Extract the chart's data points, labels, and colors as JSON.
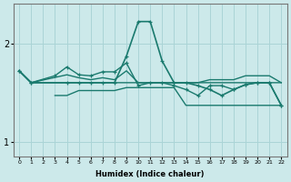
{
  "xlabel": "Humidex (Indice chaleur)",
  "xlim": [
    -0.5,
    22.5
  ],
  "ylim": [
    0.85,
    2.4
  ],
  "xticks": [
    0,
    1,
    2,
    3,
    4,
    5,
    6,
    7,
    8,
    9,
    10,
    11,
    12,
    13,
    14,
    15,
    16,
    17,
    18,
    19,
    20,
    21,
    22
  ],
  "yticks": [
    1,
    2
  ],
  "bg_color": "#cce9ea",
  "grid_color": "#aad4d6",
  "line_color": "#1a7a6e",
  "series": [
    {
      "x": [
        0,
        1,
        2,
        3,
        4,
        5,
        6,
        7,
        8,
        9,
        10,
        11,
        12,
        13,
        14,
        15,
        16,
        17,
        18,
        19,
        20,
        21,
        22
      ],
      "y": [
        1.72,
        1.6,
        1.6,
        1.6,
        1.6,
        1.6,
        1.6,
        1.6,
        1.6,
        1.6,
        1.6,
        1.6,
        1.6,
        1.6,
        1.6,
        1.6,
        1.6,
        1.6,
        1.6,
        1.6,
        1.6,
        1.6,
        1.6
      ],
      "marker": null,
      "lw": 1.0
    },
    {
      "x": [
        3,
        4,
        5,
        6,
        7,
        8,
        9,
        10,
        11,
        12,
        13,
        14,
        15,
        16,
        17,
        18,
        19,
        20,
        21,
        22
      ],
      "y": [
        1.47,
        1.47,
        1.52,
        1.52,
        1.52,
        1.52,
        1.55,
        1.55,
        1.55,
        1.55,
        1.55,
        1.37,
        1.37,
        1.37,
        1.37,
        1.37,
        1.37,
        1.37,
        1.37,
        1.37
      ],
      "marker": null,
      "lw": 1.0
    },
    {
      "x": [
        0,
        1,
        4,
        5,
        6,
        7,
        8,
        9,
        10,
        11,
        12,
        13,
        14,
        15,
        16,
        17,
        18,
        19,
        20,
        21,
        22
      ],
      "y": [
        1.72,
        1.6,
        1.68,
        1.65,
        1.63,
        1.65,
        1.63,
        1.72,
        1.6,
        1.6,
        1.6,
        1.6,
        1.6,
        1.6,
        1.63,
        1.63,
        1.63,
        1.67,
        1.67,
        1.67,
        1.6
      ],
      "marker": null,
      "lw": 1.0
    },
    {
      "x": [
        0,
        1,
        3,
        4,
        5,
        6,
        7,
        8,
        9,
        10,
        11,
        12,
        13,
        14,
        15,
        16,
        17,
        18,
        19,
        20,
        21,
        22
      ],
      "y": [
        1.72,
        1.6,
        1.67,
        1.76,
        1.68,
        1.67,
        1.71,
        1.71,
        1.8,
        1.57,
        1.6,
        1.6,
        1.57,
        1.53,
        1.47,
        1.57,
        1.57,
        1.53,
        1.58,
        1.6,
        1.6,
        1.37
      ],
      "marker": "+",
      "lw": 1.0
    },
    {
      "x": [
        0,
        1,
        4,
        5,
        6,
        7,
        8,
        9,
        10,
        11,
        12,
        13,
        14,
        15,
        16,
        17,
        18,
        19,
        20,
        21,
        22
      ],
      "y": [
        1.72,
        1.6,
        1.6,
        1.6,
        1.6,
        1.6,
        1.6,
        1.87,
        2.22,
        2.22,
        1.82,
        1.6,
        1.6,
        1.57,
        1.53,
        1.47,
        1.53,
        1.58,
        1.6,
        1.6,
        1.37
      ],
      "marker": "+",
      "lw": 1.2
    }
  ]
}
